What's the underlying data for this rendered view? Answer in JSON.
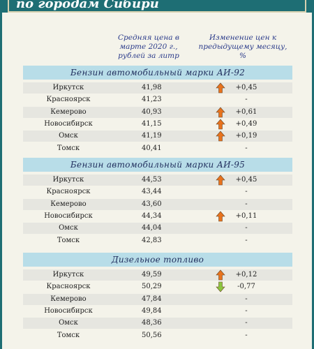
{
  "header": {
    "title": "по городам Сибири"
  },
  "columns": {
    "price": "Средняя цена в марте 2020 г., рублей за литр",
    "change": "Изменение цен к предыдущему месяцу, %"
  },
  "sections": [
    {
      "title": "Бензин автомобильный марки АИ-92",
      "rows": [
        {
          "city": "Иркутск",
          "price": "41,98",
          "arrow": "up",
          "change": "+0,45"
        },
        {
          "city": "Красноярск",
          "price": "41,23",
          "arrow": "none",
          "change": "-"
        },
        {
          "city": "Кемерово",
          "price": "40,93",
          "arrow": "up",
          "change": "+0,61"
        },
        {
          "city": "Новосибирск",
          "price": "41,15",
          "arrow": "up",
          "change": "+0,49"
        },
        {
          "city": "Омск",
          "price": "41,19",
          "arrow": "up",
          "change": "+0,19"
        },
        {
          "city": "Томск",
          "price": "40,41",
          "arrow": "none",
          "change": "-"
        }
      ]
    },
    {
      "title": "Бензин автомобильный марки АИ-95",
      "rows": [
        {
          "city": "Иркутск",
          "price": "44,53",
          "arrow": "up",
          "change": "+0,45"
        },
        {
          "city": "Красноярск",
          "price": "43,44",
          "arrow": "none",
          "change": "-"
        },
        {
          "city": "Кемерово",
          "price": "43,60",
          "arrow": "none",
          "change": "-"
        },
        {
          "city": "Новосибирск",
          "price": "44,34",
          "arrow": "up",
          "change": "+0,11"
        },
        {
          "city": "Омск",
          "price": "44,04",
          "arrow": "none",
          "change": "-"
        },
        {
          "city": "Томск",
          "price": "42,83",
          "arrow": "none",
          "change": "-"
        }
      ]
    },
    {
      "title": "Дизельное топливо",
      "rows": [
        {
          "city": "Иркутск",
          "price": "49,59",
          "arrow": "up",
          "change": "+0,12"
        },
        {
          "city": "Красноярск",
          "price": "50,29",
          "arrow": "down",
          "change": "-0,77"
        },
        {
          "city": "Кемерово",
          "price": "47,84",
          "arrow": "none",
          "change": "-"
        },
        {
          "city": "Новосибирск",
          "price": "49,84",
          "arrow": "none",
          "change": "-"
        },
        {
          "city": "Омск",
          "price": "48,36",
          "arrow": "none",
          "change": "-"
        },
        {
          "city": "Томск",
          "price": "50,56",
          "arrow": "none",
          "change": "-"
        }
      ]
    }
  ],
  "colors": {
    "up_arrow": "#e8731e",
    "down_arrow": "#8cc63f",
    "section_bg": "#b8dde8",
    "frame": "#1e6e74"
  }
}
